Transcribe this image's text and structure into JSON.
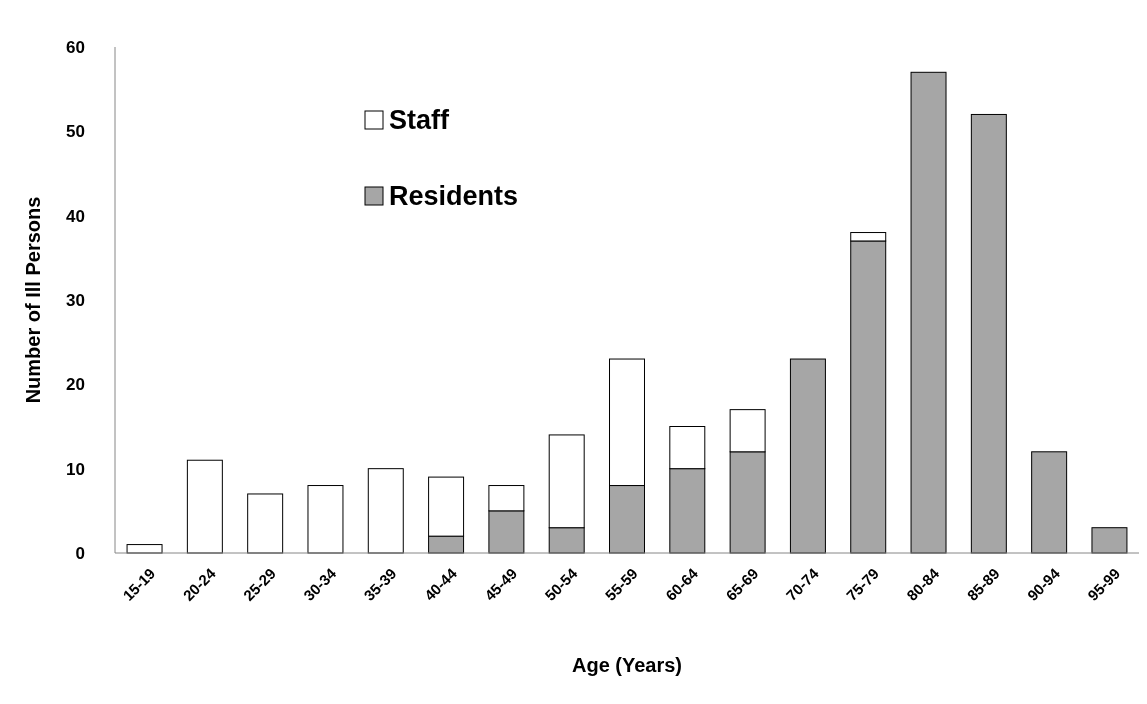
{
  "chart_data": {
    "type": "bar",
    "stacked": true,
    "xlabel": "Age (Years)",
    "ylabel": "Number of Ill Persons",
    "categories": [
      "15-19",
      "20-24",
      "25-29",
      "30-34",
      "35-39",
      "40-44",
      "45-49",
      "50-54",
      "55-59",
      "60-64",
      "65-69",
      "70-74",
      "75-79",
      "80-84",
      "85-89",
      "90-94",
      "95-99"
    ],
    "series": [
      {
        "name": "Residents",
        "color": "#a6a6a6",
        "values": [
          0,
          0,
          0,
          0,
          0,
          2,
          5,
          3,
          8,
          10,
          12,
          23,
          37,
          57,
          52,
          12,
          3
        ]
      },
      {
        "name": "Staff",
        "color": "#ffffff",
        "values": [
          1,
          11,
          7,
          8,
          10,
          7,
          3,
          11,
          15,
          5,
          5,
          0,
          1,
          0,
          0,
          0,
          0
        ]
      }
    ],
    "ylim": [
      0,
      60
    ],
    "yticks": [
      0,
      10,
      20,
      30,
      40,
      50,
      60
    ],
    "grid": false,
    "legend": "top left"
  }
}
